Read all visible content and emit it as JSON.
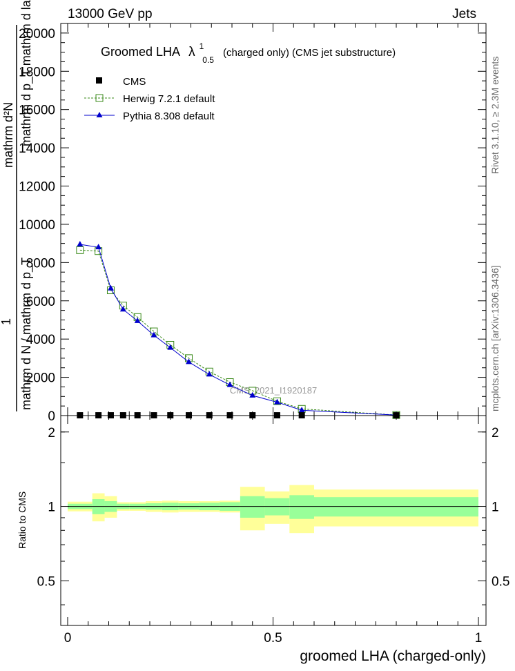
{
  "header": {
    "left": "13000 GeV pp",
    "right": "Jets"
  },
  "side_labels": {
    "rivet": "Rivet 3.1.10, ≥ 2.3M events",
    "mcplots": "mcplots.cern.ch [arXiv:1306.3436]"
  },
  "watermark": "CMS_2021_I1920187",
  "main_title": {
    "prefix": "Groomed LHA",
    "lambda": "λ",
    "sup": "1",
    "sub": "0.5",
    "suffix": "(charged only) (CMS jet substructure)"
  },
  "ylabel_main": {
    "numerator": "mathrm d²N",
    "numerator_2": "mathrm d p_T mathrm d lambda",
    "one": "1",
    "denominator": "mathrm d N / mathrm d p_T"
  },
  "ratio_ylabel": "Ratio to CMS",
  "xlabel": "groomed LHA (charged-only)",
  "colors": {
    "data": "#000000",
    "herwig": "#3a8a1a",
    "pythia": "#0000cc",
    "band_inner": "#99ff99",
    "band_outer": "#ffff99"
  },
  "chart_data": [
    {
      "type": "line",
      "title": "Groomed LHA λ^1_0.5 (charged only) (CMS jet substructure)",
      "xlim": [
        0,
        1
      ],
      "ylim": [
        0,
        20500
      ],
      "y_ticks": [
        0,
        2000,
        4000,
        6000,
        8000,
        10000,
        12000,
        14000,
        16000,
        18000,
        20000
      ],
      "y_tick_labels": [
        "0",
        "2000",
        "4000",
        "6000",
        "8000",
        "10000",
        "12000",
        "14000",
        "16000",
        "18000",
        "20000"
      ],
      "legend": [
        {
          "key": "data",
          "label": "CMS"
        },
        {
          "key": "herwig",
          "label": "Herwig 7.2.1 default"
        },
        {
          "key": "pythia",
          "label": "Pythia 8.308 default"
        }
      ],
      "legend_position": "top-left",
      "series": [
        {
          "name": "CMS",
          "key": "data",
          "x": [
            0.03,
            0.075,
            0.105,
            0.135,
            0.17,
            0.21,
            0.25,
            0.295,
            0.345,
            0.395,
            0.45,
            0.51,
            0.57,
            0.8
          ],
          "y": [
            15,
            15,
            15,
            15,
            15,
            15,
            15,
            15,
            15,
            15,
            15,
            15,
            15,
            15
          ]
        },
        {
          "name": "Herwig 7.2.1 default",
          "key": "herwig",
          "x": [
            0.03,
            0.075,
            0.105,
            0.135,
            0.17,
            0.21,
            0.25,
            0.295,
            0.345,
            0.395,
            0.45,
            0.51,
            0.57,
            0.8
          ],
          "y": [
            8650,
            8600,
            6550,
            5750,
            5150,
            4400,
            3700,
            3000,
            2300,
            1750,
            1300,
            750,
            350,
            30
          ]
        },
        {
          "name": "Pythia 8.308 default",
          "key": "pythia",
          "x": [
            0.03,
            0.075,
            0.105,
            0.135,
            0.17,
            0.21,
            0.25,
            0.295,
            0.345,
            0.395,
            0.45,
            0.51,
            0.57,
            0.8
          ],
          "y": [
            8950,
            8800,
            6650,
            5550,
            4950,
            4200,
            3550,
            2800,
            2150,
            1600,
            1050,
            700,
            280,
            25
          ]
        }
      ]
    },
    {
      "type": "area",
      "ylabel": "Ratio to CMS",
      "xlabel": "groomed LHA (charged-only)",
      "xlim": [
        0,
        1
      ],
      "ylim": [
        0.33,
        2.33
      ],
      "y_ticks": [
        0.5,
        1,
        2
      ],
      "y_tick_labels": [
        "0.5",
        "1",
        "2"
      ],
      "x_ticks": [
        0,
        0.5,
        1
      ],
      "x_tick_labels": [
        "0",
        "0.5",
        "1"
      ],
      "bins": [
        {
          "lo": 0.0,
          "hi": 0.06,
          "inner": [
            0.975,
            1.025
          ],
          "outer": [
            0.955,
            1.045
          ]
        },
        {
          "lo": 0.06,
          "hi": 0.09,
          "inner": [
            0.93,
            1.07
          ],
          "outer": [
            0.87,
            1.13
          ]
        },
        {
          "lo": 0.09,
          "hi": 0.12,
          "inner": [
            0.95,
            1.05
          ],
          "outer": [
            0.9,
            1.1
          ]
        },
        {
          "lo": 0.12,
          "hi": 0.15,
          "inner": [
            0.975,
            1.025
          ],
          "outer": [
            0.96,
            1.04
          ]
        },
        {
          "lo": 0.15,
          "hi": 0.19,
          "inner": [
            0.975,
            1.025
          ],
          "outer": [
            0.96,
            1.04
          ]
        },
        {
          "lo": 0.19,
          "hi": 0.23,
          "inner": [
            0.97,
            1.03
          ],
          "outer": [
            0.95,
            1.05
          ]
        },
        {
          "lo": 0.23,
          "hi": 0.27,
          "inner": [
            0.965,
            1.035
          ],
          "outer": [
            0.945,
            1.055
          ]
        },
        {
          "lo": 0.27,
          "hi": 0.32,
          "inner": [
            0.97,
            1.03
          ],
          "outer": [
            0.95,
            1.05
          ]
        },
        {
          "lo": 0.32,
          "hi": 0.37,
          "inner": [
            0.965,
            1.035
          ],
          "outer": [
            0.95,
            1.05
          ]
        },
        {
          "lo": 0.37,
          "hi": 0.42,
          "inner": [
            0.96,
            1.04
          ],
          "outer": [
            0.945,
            1.055
          ]
        },
        {
          "lo": 0.42,
          "hi": 0.48,
          "inner": [
            0.9,
            1.1
          ],
          "outer": [
            0.8,
            1.2
          ]
        },
        {
          "lo": 0.48,
          "hi": 0.54,
          "inner": [
            0.92,
            1.08
          ],
          "outer": [
            0.85,
            1.15
          ]
        },
        {
          "lo": 0.54,
          "hi": 0.6,
          "inner": [
            0.89,
            1.11
          ],
          "outer": [
            0.78,
            1.22
          ]
        },
        {
          "lo": 0.6,
          "hi": 1.0,
          "inner": [
            0.91,
            1.09
          ],
          "outer": [
            0.83,
            1.17
          ]
        }
      ]
    }
  ]
}
